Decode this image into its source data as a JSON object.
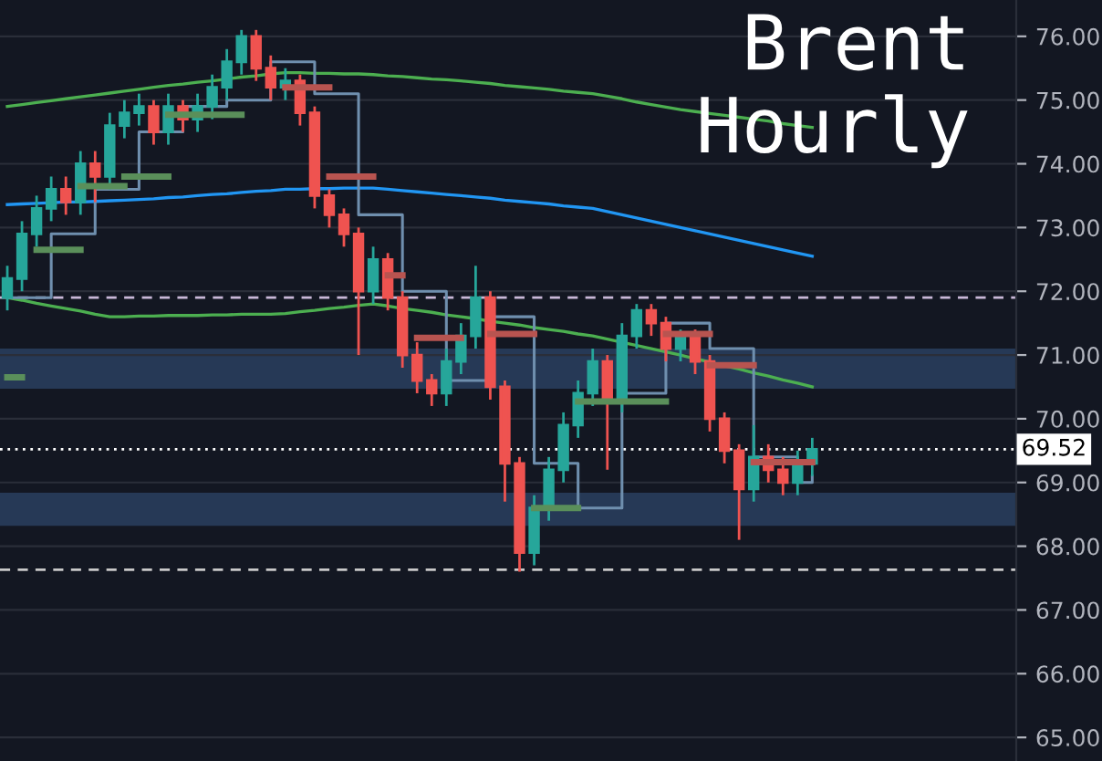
{
  "chart_data": {
    "type": "candlestick",
    "title": "Brent\nHourly",
    "categories": [
      null,
      null,
      null,
      null,
      null,
      null,
      null,
      null,
      null,
      null,
      null,
      null,
      null,
      null,
      null,
      null,
      null,
      null,
      null,
      null,
      null,
      null,
      null,
      null,
      null,
      null,
      null,
      null,
      null,
      null,
      null,
      null,
      null,
      null,
      null,
      null,
      null,
      null,
      null,
      null,
      null,
      null,
      null,
      null,
      null,
      null,
      null,
      null,
      null,
      null,
      null,
      null,
      null,
      null,
      null,
      null
    ],
    "ohlc": [
      [
        71.9,
        72.4,
        71.7,
        72.2
      ],
      [
        72.2,
        73.1,
        72.0,
        72.9
      ],
      [
        72.9,
        73.5,
        72.7,
        73.3
      ],
      [
        73.3,
        73.8,
        73.1,
        73.6
      ],
      [
        73.6,
        73.8,
        73.2,
        73.4
      ],
      [
        73.4,
        74.2,
        73.2,
        74.0
      ],
      [
        74.0,
        74.2,
        73.4,
        73.8
      ],
      [
        73.8,
        74.8,
        73.6,
        74.6
      ],
      [
        74.6,
        75.0,
        74.4,
        74.8
      ],
      [
        74.8,
        75.1,
        74.6,
        74.9
      ],
      [
        74.9,
        75.0,
        74.3,
        74.5
      ],
      [
        74.5,
        75.1,
        74.3,
        74.9
      ],
      [
        74.9,
        75.0,
        74.5,
        74.7
      ],
      [
        74.7,
        75.1,
        74.5,
        74.9
      ],
      [
        74.9,
        75.4,
        74.7,
        75.2
      ],
      [
        75.2,
        75.8,
        75.0,
        75.6
      ],
      [
        75.6,
        76.1,
        75.4,
        76.0
      ],
      [
        76.0,
        76.1,
        75.3,
        75.5
      ],
      [
        75.5,
        75.7,
        75.0,
        75.2
      ],
      [
        75.2,
        75.5,
        75.0,
        75.3
      ],
      [
        75.3,
        75.4,
        74.6,
        74.8
      ],
      [
        74.8,
        74.9,
        73.3,
        73.5
      ],
      [
        73.5,
        73.6,
        73.0,
        73.2
      ],
      [
        73.2,
        73.3,
        72.7,
        72.9
      ],
      [
        72.9,
        73.0,
        71.0,
        72.0
      ],
      [
        72.0,
        72.7,
        71.8,
        72.5
      ],
      [
        72.5,
        72.6,
        71.7,
        71.9
      ],
      [
        71.9,
        72.0,
        70.8,
        71.0
      ],
      [
        71.0,
        71.2,
        70.4,
        70.6
      ],
      [
        70.6,
        70.7,
        70.2,
        70.4
      ],
      [
        70.4,
        71.1,
        70.2,
        70.9
      ],
      [
        70.9,
        71.5,
        70.7,
        71.3
      ],
      [
        71.3,
        72.4,
        71.1,
        71.9
      ],
      [
        71.9,
        72.0,
        70.3,
        70.5
      ],
      [
        70.5,
        70.6,
        68.7,
        69.3
      ],
      [
        69.3,
        69.4,
        67.6,
        67.9
      ],
      [
        67.9,
        68.8,
        67.7,
        68.6
      ],
      [
        68.6,
        69.4,
        68.4,
        69.2
      ],
      [
        69.2,
        70.1,
        69.0,
        69.9
      ],
      [
        69.9,
        70.6,
        69.7,
        70.4
      ],
      [
        70.4,
        71.1,
        70.2,
        70.9
      ],
      [
        70.9,
        71.0,
        69.2,
        70.3
      ],
      [
        70.3,
        71.5,
        70.1,
        71.3
      ],
      [
        71.3,
        71.8,
        71.1,
        71.7
      ],
      [
        71.7,
        71.8,
        71.3,
        71.5
      ],
      [
        71.5,
        71.6,
        70.9,
        71.1
      ],
      [
        71.1,
        71.4,
        70.9,
        71.3
      ],
      [
        71.3,
        71.4,
        70.7,
        70.9
      ],
      [
        70.9,
        71.0,
        69.8,
        70.0
      ],
      [
        70.0,
        70.1,
        69.3,
        69.5
      ],
      [
        69.5,
        69.6,
        68.1,
        68.9
      ],
      [
        68.9,
        69.9,
        68.7,
        69.4
      ],
      [
        69.4,
        69.6,
        69.0,
        69.2
      ],
      [
        69.2,
        69.4,
        68.8,
        69.0
      ],
      [
        69.0,
        69.5,
        68.8,
        69.3
      ],
      [
        69.3,
        69.7,
        69.1,
        69.52
      ]
    ],
    "colors": [
      "#26a69a",
      "#26a69a",
      "#26a69a",
      "#26a69a",
      "#ef5350",
      "#26a69a",
      "#ef5350",
      "#26a69a",
      "#26a69a",
      "#26a69a",
      "#ef5350",
      "#26a69a",
      "#ef5350",
      "#26a69a",
      "#26a69a",
      "#26a69a",
      "#26a69a",
      "#ef5350",
      "#ef5350",
      "#26a69a",
      "#ef5350",
      "#ef5350",
      "#ef5350",
      "#ef5350",
      "#ef5350",
      "#26a69a",
      "#ef5350",
      "#ef5350",
      "#ef5350",
      "#ef5350",
      "#26a69a",
      "#26a69a",
      "#26a69a",
      "#ef5350",
      "#ef5350",
      "#ef5350",
      "#26a69a",
      "#26a69a",
      "#26a69a",
      "#26a69a",
      "#26a69a",
      "#ef5350",
      "#26a69a",
      "#26a69a",
      "#ef5350",
      "#ef5350",
      "#26a69a",
      "#ef5350",
      "#ef5350",
      "#ef5350",
      "#ef5350",
      "#26a69a",
      "#ef5350",
      "#ef5350",
      "#26a69a",
      "#26a69a"
    ],
    "series": [
      {
        "type": "line",
        "color": "#4caf50",
        "values": [
          74.9,
          74.93,
          74.96,
          74.99,
          75.02,
          75.05,
          75.08,
          75.11,
          75.14,
          75.17,
          75.2,
          75.23,
          75.25,
          75.28,
          75.3,
          75.33,
          75.36,
          75.38,
          75.41,
          75.43,
          75.43,
          75.42,
          75.42,
          75.41,
          75.41,
          75.4,
          75.38,
          75.37,
          75.35,
          75.33,
          75.32,
          75.3,
          75.28,
          75.26,
          75.23,
          75.21,
          75.19,
          75.17,
          75.14,
          75.12,
          75.1,
          75.06,
          75.02,
          74.97,
          74.93,
          74.89,
          74.85,
          74.82,
          74.79,
          74.76,
          74.73,
          74.7,
          74.67,
          74.63,
          74.6,
          74.57
        ]
      },
      {
        "type": "line",
        "color": "#2196f3",
        "values": [
          73.36,
          73.37,
          73.38,
          73.39,
          73.4,
          73.4,
          73.41,
          73.42,
          73.43,
          73.44,
          73.45,
          73.47,
          73.48,
          73.5,
          73.52,
          73.53,
          73.55,
          73.57,
          73.58,
          73.6,
          73.6,
          73.61,
          73.61,
          73.62,
          73.62,
          73.62,
          73.6,
          73.58,
          73.56,
          73.54,
          73.52,
          73.5,
          73.48,
          73.46,
          73.43,
          73.41,
          73.39,
          73.37,
          73.34,
          73.32,
          73.3,
          73.25,
          73.2,
          73.15,
          73.1,
          73.05,
          73.0,
          72.95,
          72.9,
          72.85,
          72.8,
          72.75,
          72.7,
          72.65,
          72.6,
          72.55
        ]
      },
      {
        "type": "line",
        "color": "#4caf50",
        "values": [
          71.9,
          71.86,
          71.81,
          71.77,
          71.73,
          71.69,
          71.64,
          71.6,
          71.6,
          71.61,
          71.61,
          71.62,
          71.62,
          71.62,
          71.63,
          71.63,
          71.64,
          71.64,
          71.64,
          71.65,
          71.68,
          71.7,
          71.73,
          71.75,
          71.78,
          71.8,
          71.77,
          71.73,
          71.7,
          71.67,
          71.63,
          71.6,
          71.57,
          71.53,
          71.5,
          71.47,
          71.43,
          71.4,
          71.37,
          71.33,
          71.3,
          71.25,
          71.2,
          71.15,
          71.1,
          71.05,
          71.0,
          70.94,
          70.89,
          70.83,
          70.78,
          70.72,
          70.67,
          70.61,
          70.56,
          70.5
        ]
      },
      {
        "type": "step",
        "color": "#6f8fae",
        "values": [
          71.9,
          71.9,
          71.9,
          72.9,
          72.9,
          72.9,
          73.6,
          73.6,
          73.6,
          74.5,
          74.5,
          74.5,
          74.9,
          74.9,
          74.9,
          75.0,
          75.0,
          75.0,
          75.6,
          75.6,
          75.6,
          75.1,
          75.1,
          75.1,
          73.2,
          73.2,
          73.2,
          72.0,
          72.0,
          72.0,
          70.6,
          70.6,
          70.6,
          71.6,
          71.6,
          71.6,
          69.3,
          69.3,
          69.3,
          68.6,
          68.6,
          68.6,
          70.4,
          70.4,
          70.4,
          71.5,
          71.5,
          71.5,
          71.1,
          71.1,
          71.1,
          69.4,
          69.4,
          69.4,
          69.0,
          69.1
        ]
      },
      {
        "type": "line",
        "color": "#5a8f5a",
        "values": [
          70.65,
          70.65,
          null,
          null,
          null,
          73.65,
          73.65,
          73.65,
          73.65,
          null,
          null,
          74.77,
          74.77,
          74.77,
          74.77,
          74.77,
          74.77,
          null,
          null,
          null,
          null,
          null,
          null,
          null,
          null,
          null,
          null,
          null,
          null,
          null,
          null,
          null,
          null,
          null,
          null,
          null,
          null,
          null,
          null,
          70.27,
          70.27,
          70.27,
          70.27,
          70.27,
          70.27,
          70.27,
          null,
          null,
          null,
          null,
          null,
          null,
          null,
          null,
          null,
          null
        ]
      },
      {
        "type": "line",
        "color": "#5a8f5a",
        "values": [
          null,
          null,
          72.65,
          72.65,
          72.65,
          72.65,
          null,
          null,
          73.8,
          73.8,
          73.8,
          73.8,
          null,
          null,
          null,
          null,
          null,
          null,
          null,
          null,
          null,
          null,
          null,
          null,
          null,
          null,
          null,
          null,
          null,
          null,
          null,
          null,
          null,
          null,
          null,
          null,
          68.6,
          68.6,
          68.6,
          68.6,
          null,
          null,
          null,
          null,
          null,
          null,
          null,
          null,
          null,
          null,
          null,
          null,
          null,
          null,
          null,
          null
        ]
      },
      {
        "type": "line",
        "color": "#b85450",
        "values": [
          null,
          null,
          null,
          null,
          null,
          null,
          null,
          null,
          null,
          null,
          null,
          null,
          null,
          null,
          null,
          null,
          null,
          null,
          null,
          75.2,
          75.2,
          75.2,
          75.2,
          null,
          null,
          null,
          72.25,
          72.25,
          null,
          null,
          null,
          null,
          null,
          71.33,
          71.33,
          71.33,
          71.33,
          null,
          null,
          null,
          null,
          null,
          null,
          null,
          null,
          null,
          null,
          null,
          70.84,
          70.84,
          70.84,
          70.84,
          null,
          null,
          null,
          null
        ]
      },
      {
        "type": "line",
        "color": "#b85450",
        "values": [
          null,
          null,
          null,
          null,
          null,
          null,
          null,
          null,
          null,
          null,
          null,
          null,
          null,
          null,
          null,
          null,
          null,
          null,
          null,
          null,
          null,
          null,
          73.8,
          73.8,
          73.8,
          73.8,
          null,
          null,
          71.27,
          71.27,
          71.27,
          71.27,
          null,
          null,
          null,
          null,
          null,
          null,
          null,
          null,
          null,
          null,
          null,
          null,
          null,
          71.33,
          71.33,
          71.33,
          71.33,
          null,
          null,
          69.32,
          69.32,
          69.32,
          69.32,
          69.32
        ]
      }
    ],
    "bands": [
      {
        "axis": "y",
        "from": 70.47,
        "to": 71.1,
        "color": "#2a3f5f"
      },
      {
        "axis": "y",
        "from": 68.32,
        "to": 68.84,
        "color": "#2a3f5f"
      }
    ],
    "ref_lines": [
      {
        "axis": "y",
        "value": 71.9,
        "color": "#c9b8d8",
        "line_style": "dashed"
      },
      {
        "axis": "y",
        "value": 67.63,
        "color": "#c9c9c9",
        "line_style": "dashed"
      },
      {
        "axis": "y",
        "value": 69.52,
        "label": "69.52",
        "color": "#ffffff",
        "line_style": "dotted"
      }
    ],
    "ylim": [
      64.63,
      76.57
    ],
    "yticks": [
      {
        "value": 65,
        "label": "65.00"
      },
      {
        "value": 66,
        "label": "66.00"
      },
      {
        "value": 67,
        "label": "67.00"
      },
      {
        "value": 68,
        "label": "68.00"
      },
      {
        "value": 69,
        "label": "69.00"
      },
      {
        "value": 70,
        "label": "70.00"
      },
      {
        "value": 71,
        "label": "71.00"
      },
      {
        "value": 72,
        "label": "72.00"
      },
      {
        "value": 73,
        "label": "73.00"
      },
      {
        "value": 74,
        "label": "74.00"
      },
      {
        "value": 75,
        "label": "75.00"
      },
      {
        "value": 76,
        "label": "76.00"
      }
    ],
    "tick_labels": "y",
    "grid": "y",
    "legend": false
  }
}
